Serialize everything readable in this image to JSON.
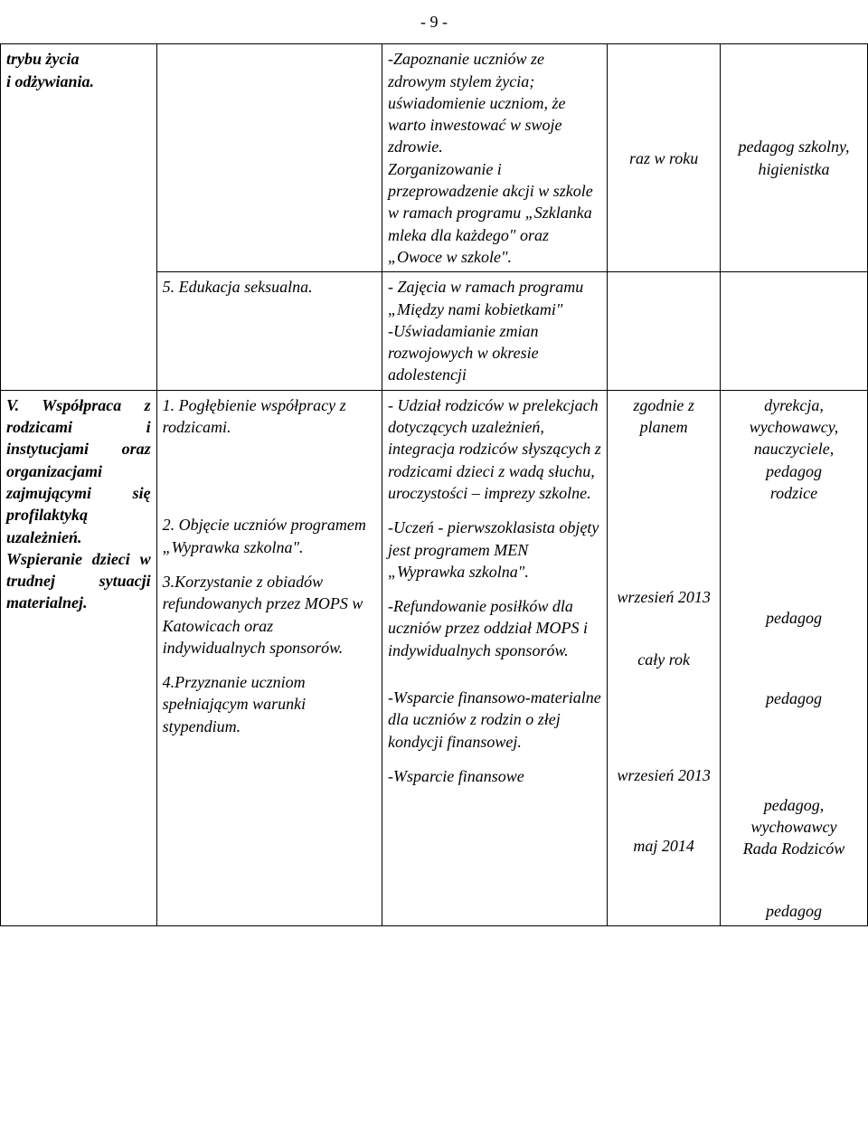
{
  "pageNumber": "- 9 -",
  "row1": {
    "col1": "trybu życia\ni odżywiania.",
    "col2": "",
    "col3": "-Zapoznanie uczniów ze zdrowym stylem życia; uświadomienie uczniom, że warto inwestować w swoje zdrowie.\nZorganizowanie i przeprowadzenie akcji w szkole w ramach programu „Szklanka mleka dla każdego\" oraz „Owoce w szkole\".",
    "col4": "raz w roku",
    "col5": "pedagog szkolny,\nhigienistka"
  },
  "row2": {
    "col2": "5. Edukacja seksualna.",
    "col3": "- Zajęcia w ramach programu „Między nami kobietkami\"\n-Uświadamianie zmian rozwojowych w okresie adolestencji"
  },
  "row3": {
    "col1_a": "V. Współpraca z",
    "col1_b": "rodzicami i instytucjami oraz organizacjami zajmującymi się profilaktyką uzależnień. Wspieranie dzieci w trudnej sytuacji materialnej.",
    "col2_1": "1. Pogłębienie współpracy z rodzicami.",
    "col3_1": "- Udział rodziców  w prelekcjach dotyczących uzależnień, integracja rodziców słyszących z rodzicami dzieci z wadą słuchu, uroczystości – imprezy szkolne.",
    "col4_1": "zgodnie z planem",
    "col5_1": "dyrekcja,\nwychowawcy,\nnauczyciele,\npedagog\nrodzice",
    "col2_2": "2. Objęcie uczniów programem  „Wyprawka szkolna\".",
    "col3_2": "-Uczeń - pierwszoklasista objęty jest programem MEN „Wyprawka szkolna\".",
    "col4_2": "wrzesień 2013",
    "col5_2": "pedagog",
    "col2_3": "3.Korzystanie z obiadów refundowanych przez MOPS w Katowicach oraz indywidualnych sponsorów.",
    "col3_3": "-Refundowanie posiłków dla uczniów przez oddział MOPS  i indywidualnych sponsorów.",
    "col4_3": "cały rok",
    "col5_3": "pedagog",
    "col2_4": "4.Przyznanie uczniom spełniającym warunki stypendium.",
    "col3_4": "-Wsparcie finansowo-materialne dla uczniów z rodzin o złej kondycji finansowej.",
    "col4_4": "wrzesień 2013",
    "col5_4": "pedagog,\nwychowawcy\nRada Rodziców",
    "col3_5": "-Wsparcie finansowe",
    "col4_5": "maj 2014",
    "col5_5": "pedagog"
  }
}
